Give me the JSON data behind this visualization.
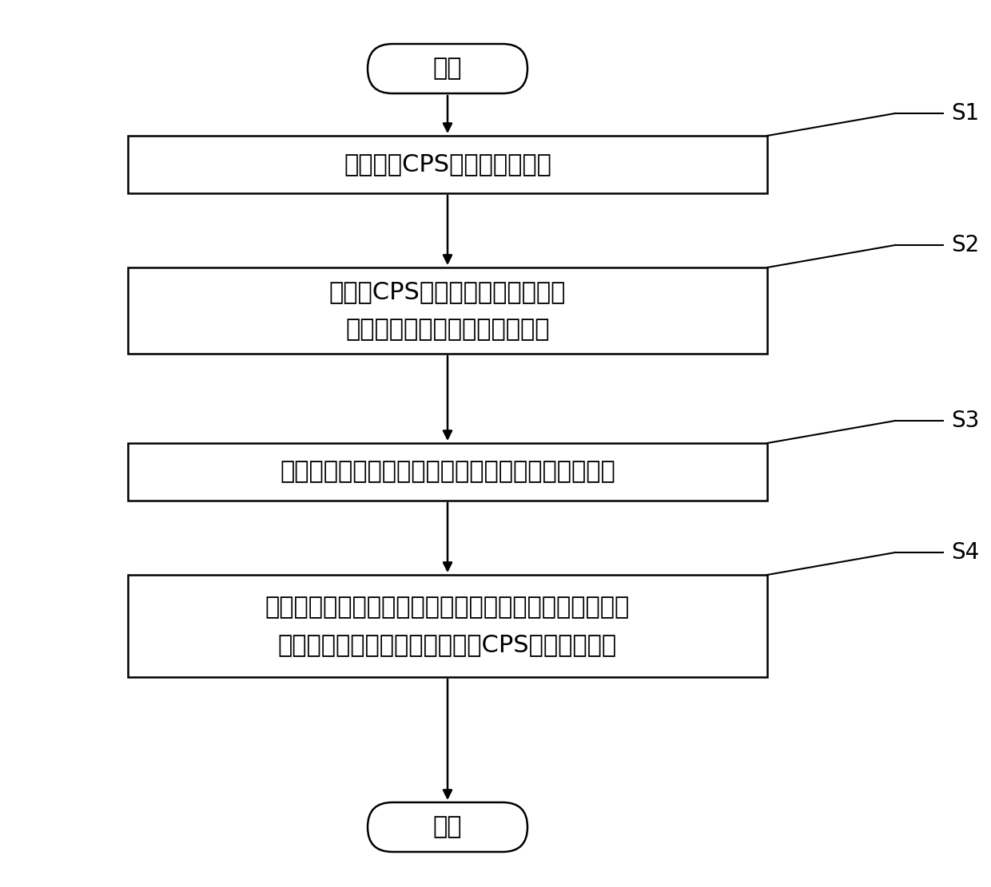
{
  "bg_color": "#ffffff",
  "border_color": "#000000",
  "text_color": "#000000",
  "arrow_color": "#000000",
  "start_end_bg": "#ffffff",
  "box_bg": "#ffffff",
  "start_text": "开始",
  "end_text": "结束",
  "steps": [
    {
      "label": "S1",
      "text": "搭建电力CPS的信息网络拓扑",
      "lines": 1
    },
    {
      "label": "S2",
      "text": "将电力CPS中的所有元件元胞化，\n并确定其元胞间的状态转换形式",
      "lines": 2
    },
    {
      "label": "S3",
      "text": "分别建立物理元胞自动机模型和信息元胞自动机模型",
      "lines": 1
    },
    {
      "label": "S4",
      "text": "融合物理元胞自动机模型和信息元胞自动机模型，根据其\n耦合方式与耦合强度，确定电力CPS连锁故障模型",
      "lines": 2
    }
  ],
  "font_size_main": 22,
  "font_size_label": 20,
  "font_family": "SimHei"
}
